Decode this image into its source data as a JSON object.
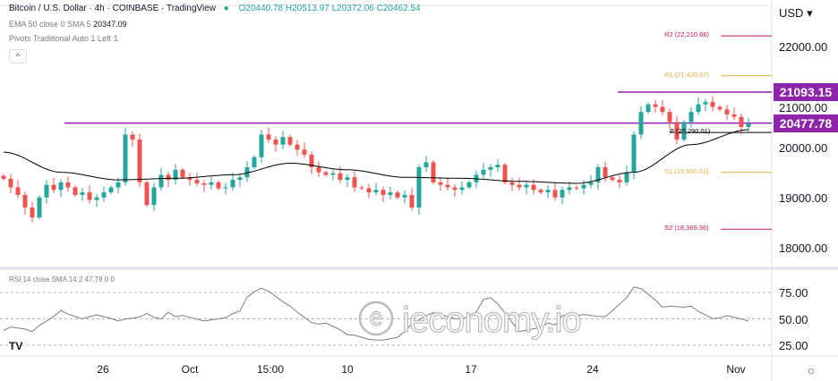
{
  "header": {
    "title": "Bitcoin / U.S. Dollar · 4h · COINBASE · TradingView",
    "ohlc": "O20440.78 H20513.97 L20372.06 C20462.54",
    "ema_label": "EMA 50 close 0 SMA 5",
    "ema_value": "20347.09",
    "pivots_label": "Pivots Traditional Auto 1 Left 1",
    "collapse_icon": "chevron-up-icon",
    "rsi_label": "RSI 14 close SMA 14 2",
    "rsi_value": "47.78",
    "rsi_extra": "0 0"
  },
  "currency": "USD",
  "watermark": "ieconomy.io",
  "colors": {
    "up": "#26a69a",
    "down": "#ef5350",
    "ema": "#000000",
    "level": "#8e24aa",
    "r": "#c2185b",
    "r1": "#e0b040",
    "rsi": "#7e7e7e"
  },
  "chart_data": {
    "type": "candlestick",
    "price_axis": {
      "ticks": [
        "22000.00",
        "21000.00",
        "20000.00",
        "19000.00",
        "18000.00"
      ],
      "range": [
        17600,
        22800
      ]
    },
    "time_axis": {
      "ticks": [
        "26",
        "Oct",
        "15:00",
        "10",
        "17",
        "24",
        "Nov"
      ]
    },
    "closes": [
      19370,
      19200,
      19050,
      18800,
      18600,
      19000,
      19250,
      19150,
      19300,
      19200,
      19050,
      19100,
      18950,
      19000,
      19100,
      19200,
      19300,
      20250,
      20150,
      19300,
      18850,
      19200,
      19450,
      19350,
      19550,
      19400,
      19350,
      19280,
      19250,
      19300,
      19180,
      19200,
      19350,
      19400,
      19600,
      19800,
      20250,
      20150,
      20050,
      20200,
      20050,
      19950,
      19850,
      19600,
      19500,
      19450,
      19480,
      19350,
      19400,
      19200,
      19180,
      19100,
      19150,
      19050,
      19100,
      19000,
      19050,
      18800,
      19600,
      19700,
      19300,
      19250,
      19200,
      19150,
      19200,
      19300,
      19450,
      19550,
      19600,
      19650,
      19300,
      19250,
      19200,
      19250,
      19150,
      19100,
      19150,
      19000,
      19150,
      19200,
      19180,
      19250,
      19300,
      19600,
      19400,
      19350,
      19300,
      19500,
      20250,
      20700,
      20850,
      20800,
      20700,
      20500,
      20150,
      20500,
      20700,
      20850,
      20900,
      20800,
      20750,
      20650,
      20600,
      20400,
      20462.54
    ],
    "ema50": [
      19900,
      19500,
      19350,
      19380,
      19450,
      19680,
      19550,
      19400,
      19380,
      19320,
      19280,
      19500,
      20050,
      20347.09
    ],
    "horizontal_levels": [
      {
        "value": 21093.15,
        "label": "21093.15"
      },
      {
        "value": 20477.78,
        "label": "20477.78"
      }
    ],
    "pivots": [
      {
        "name": "R2",
        "value": 22210.66,
        "label": "R2 (22,210.66)"
      },
      {
        "name": "R1",
        "value": 21420.67,
        "label": "R1 (21,420.67)"
      },
      {
        "name": "P",
        "value": 20290.01,
        "label": "P (20,290.01)"
      },
      {
        "name": "S1",
        "value": 19500.02,
        "label": "S1 (19,500.02)"
      },
      {
        "name": "S2",
        "value": 18369.36,
        "label": "S2 (18,369.36)"
      }
    ],
    "rsi": {
      "ticks": [
        "75.00",
        "50.00",
        "25.00"
      ],
      "values": [
        39,
        38,
        58,
        52,
        48,
        55,
        52,
        48,
        55,
        79,
        62,
        45,
        35,
        30,
        38,
        56,
        50,
        70,
        38,
        46,
        53,
        52,
        80,
        61,
        62,
        51,
        47.78
      ]
    }
  }
}
